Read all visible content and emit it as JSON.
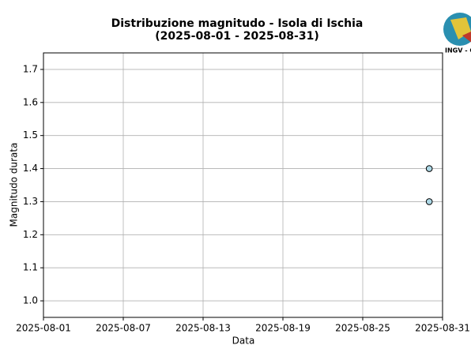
{
  "chart_data": {
    "type": "scatter",
    "title": "Distribuzione magnitudo - Isola di Ischia",
    "subtitle": "(2025-08-01 - 2025-08-31)",
    "logo_text": "INGV - C",
    "xlabel": "Data",
    "ylabel": "Magnitudo durata",
    "x": [
      "2025-08-30",
      "2025-08-30"
    ],
    "values": [
      1.4,
      1.3
    ],
    "color": "#add8e6",
    "xlim": [
      "2025-08-01",
      "2025-08-31"
    ],
    "xticks": [
      "2025-08-01",
      "2025-08-07",
      "2025-08-13",
      "2025-08-19",
      "2025-08-25",
      "2025-08-31"
    ],
    "ylim": [
      0.95,
      1.75
    ],
    "yticks": [
      {
        "value": 1,
        "label": "1.0"
      },
      1.1,
      1.2,
      1.3,
      1.4,
      1.5,
      1.6,
      1.7
    ],
    "grid": true
  }
}
